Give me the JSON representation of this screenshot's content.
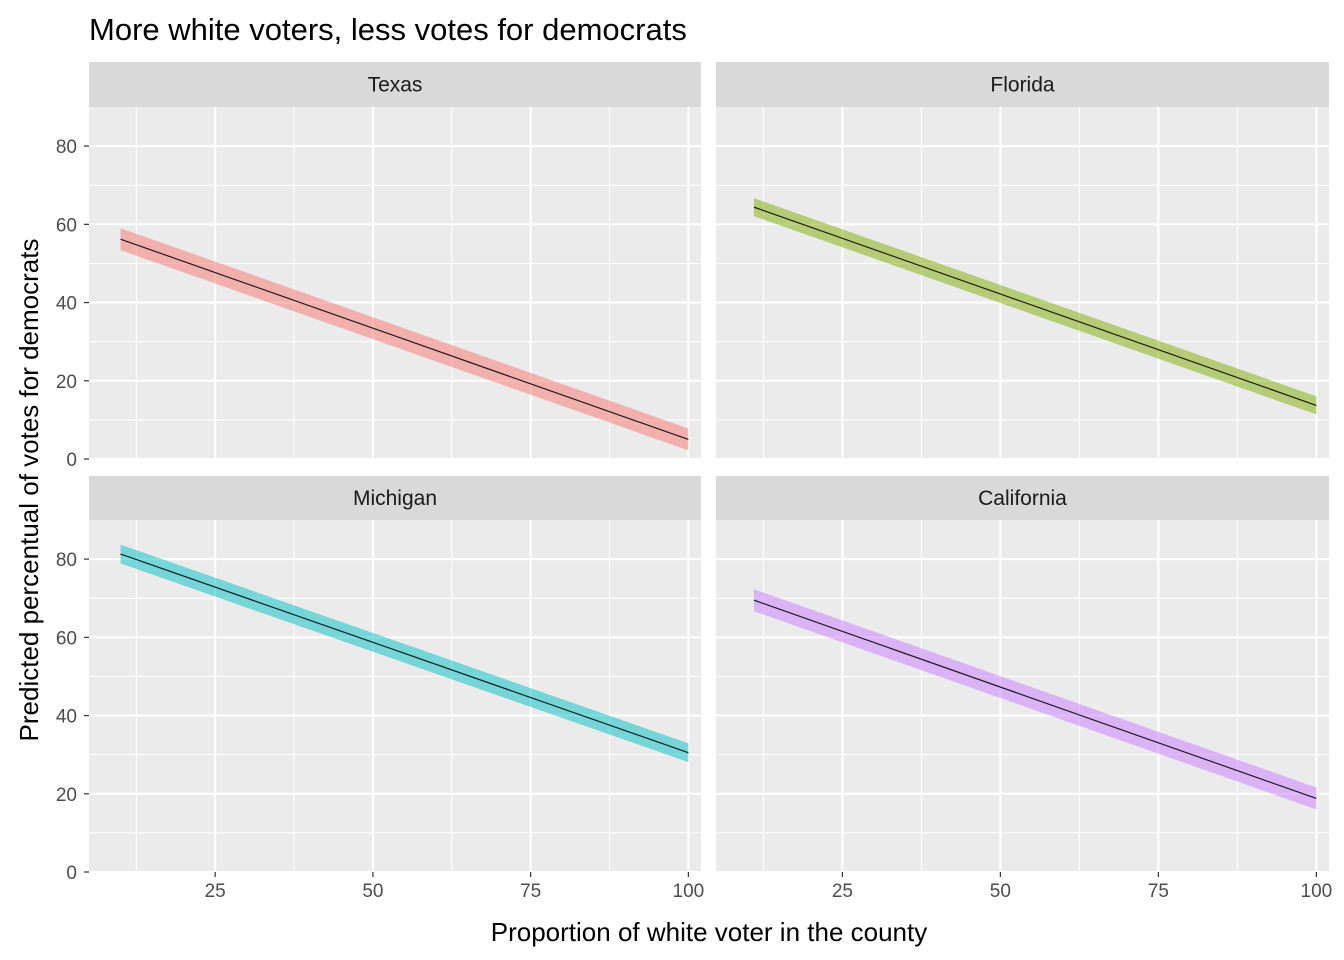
{
  "chart_data": {
    "type": "line",
    "title": "More white voters, less votes for democrats",
    "xlabel": "Proportion of white voter in the county",
    "ylabel": "Predicted percentual of votes for democrats",
    "xlim": [
      5,
      102
    ],
    "ylim": [
      0,
      90
    ],
    "x_ticks": [
      "25",
      "50",
      "75",
      "100"
    ],
    "y_ticks": [
      "0",
      "20",
      "40",
      "60",
      "80"
    ],
    "grid": true,
    "legend": "none",
    "facets": [
      {
        "name": "Texas",
        "x_start": 10,
        "x_end": 100,
        "fit_start": 56.2,
        "fit_end": 5.0,
        "ci_halfwidth": 2.8,
        "fill": "#F8766D"
      },
      {
        "name": "Florida",
        "x_start": 11,
        "x_end": 100,
        "fit_start": 64.4,
        "fit_end": 13.7,
        "ci_halfwidth": 2.3,
        "fill": "#7CAE00"
      },
      {
        "name": "Michigan",
        "x_start": 10,
        "x_end": 100,
        "fit_start": 81.3,
        "fit_end": 30.5,
        "ci_halfwidth": 2.4,
        "fill": "#00BFC4"
      },
      {
        "name": "California",
        "x_start": 11,
        "x_end": 100,
        "fit_start": 69.5,
        "fit_end": 18.8,
        "ci_halfwidth": 2.8,
        "fill": "#C77CFF"
      }
    ]
  }
}
